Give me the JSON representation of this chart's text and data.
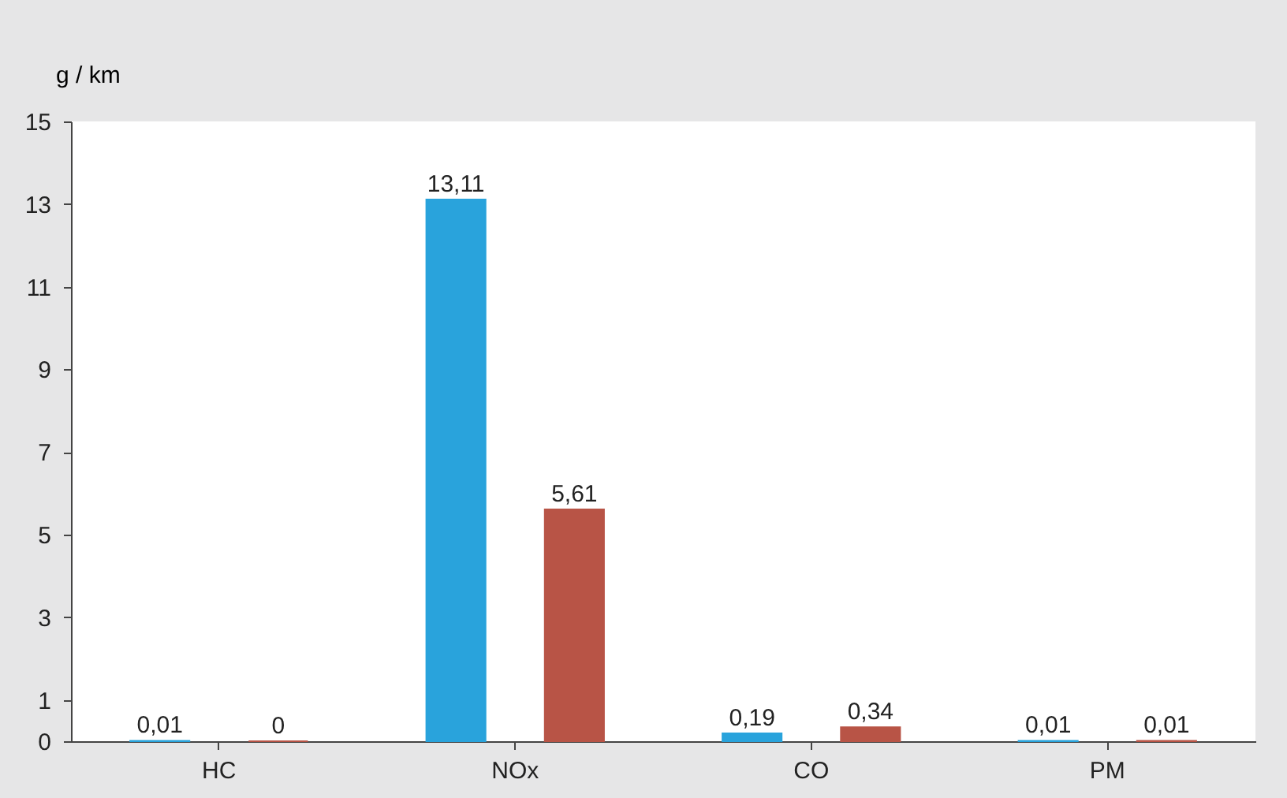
{
  "chart_data": {
    "type": "bar",
    "ylabel": "g / km",
    "categories": [
      "HC",
      "NOx",
      "CO",
      "PM"
    ],
    "series": [
      {
        "color": "#29a3dc",
        "values": [
          0.01,
          13.11,
          0.19,
          0.01
        ],
        "value_labels": [
          "0,01",
          "13,11",
          "0,19",
          "0,01"
        ]
      },
      {
        "color": "#b85446",
        "values": [
          0,
          5.61,
          0.34,
          0.01
        ],
        "value_labels": [
          "0",
          "5,61",
          "0,34",
          "0,01"
        ]
      }
    ],
    "ylim": [
      0,
      15
    ],
    "yticks": [
      0,
      1,
      3,
      5,
      7,
      9,
      11,
      13,
      15
    ],
    "grid": false,
    "legend": false
  }
}
